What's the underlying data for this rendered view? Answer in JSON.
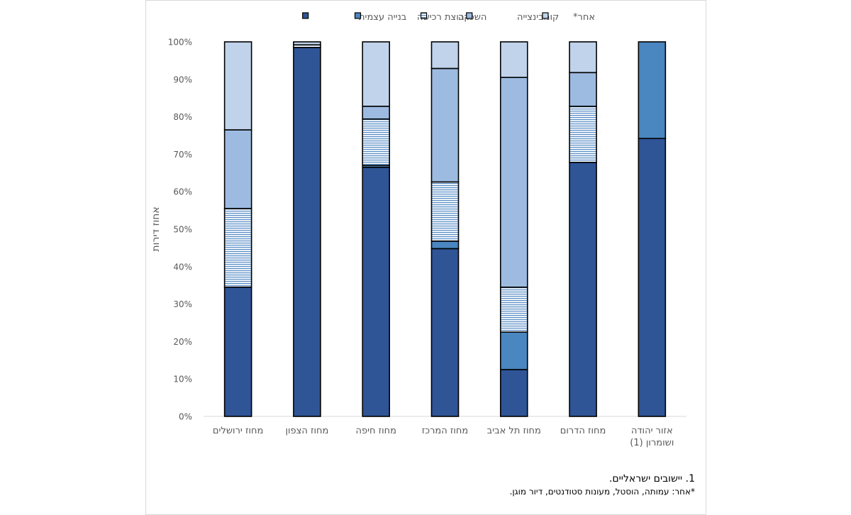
{
  "chart_data": {
    "type": "bar",
    "stacked": true,
    "ylabel": "אחוז דירות",
    "ylim": [
      0,
      100
    ],
    "yticks": [
      "0%",
      "10%",
      "20%",
      "30%",
      "40%",
      "50%",
      "60%",
      "70%",
      "80%",
      "90%",
      "100%"
    ],
    "grid": false,
    "legend_position": "top",
    "categories": [
      "מחוז ירושלים",
      "מחוז הצפון",
      "מחוז חיפה",
      "מחוז המרכז",
      "מחוז תל אביב",
      "מחוז הדרום",
      "אזור יהודה ושומרון (1)"
    ],
    "series": [
      {
        "name": "בנייה עצמית",
        "values": [
          34.5,
          98.5,
          66.5,
          44.8,
          12.5,
          67.8,
          74.2
        ]
      },
      {
        "name": "קבוצת רכישה",
        "values": [
          0,
          0,
          0.5,
          2.0,
          10.0,
          0,
          25.8
        ]
      },
      {
        "name": "השכרה",
        "values": [
          21.0,
          0.7,
          12.4,
          15.8,
          12.0,
          15.0,
          0
        ]
      },
      {
        "name": "קומבינצייה",
        "values": [
          21.0,
          0,
          3.4,
          30.3,
          56.0,
          9.0,
          0
        ]
      },
      {
        "name": "אחר*",
        "values": [
          23.5,
          0.8,
          17.2,
          7.1,
          9.5,
          8.2,
          0
        ]
      }
    ],
    "colors": {
      "self_build": "#2f5597",
      "purchase_group": "#4a86c0",
      "rental": "#8ab0dc",
      "combination": "#9dbbe1",
      "other": "#c0d3eb"
    }
  },
  "footnotes": {
    "note1": "1. יישובים ישראליים.",
    "note2": "*אחר: עמותה, הוסטל, מעונות סטודנטים, דיור מוגן."
  }
}
